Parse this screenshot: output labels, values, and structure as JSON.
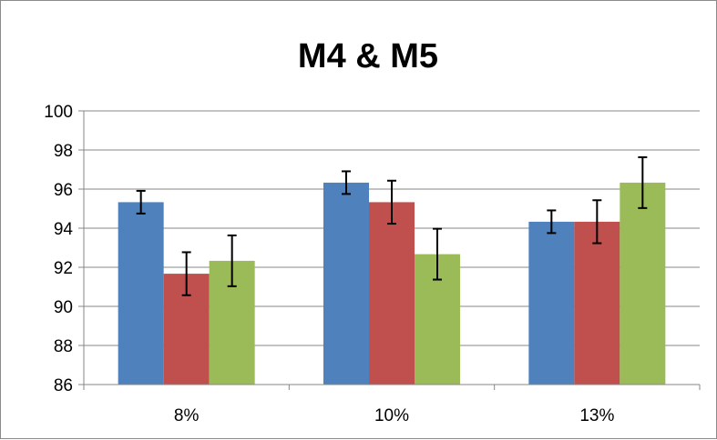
{
  "chart_data": {
    "type": "bar",
    "title": "M4 & M5",
    "xlabel": "",
    "ylabel": "",
    "categories": [
      "8%",
      "10%",
      "13%"
    ],
    "series": [
      {
        "color": "#4F81BD",
        "values": [
          95.33,
          96.33,
          94.33
        ],
        "errors": [
          0.58,
          0.58,
          0.58
        ]
      },
      {
        "color": "#C0504D",
        "values": [
          91.67,
          95.33,
          94.33
        ],
        "errors": [
          1.1,
          1.1,
          1.1
        ]
      },
      {
        "color": "#9BBB59",
        "values": [
          92.33,
          92.67,
          96.33
        ],
        "errors": [
          1.3,
          1.3,
          1.3
        ]
      }
    ],
    "ylim": [
      86,
      100
    ],
    "yticks": [
      86,
      88,
      90,
      92,
      94,
      96,
      98,
      100
    ],
    "ytick_labels": [
      "86",
      "88",
      "90",
      "92",
      "94",
      "96",
      "98",
      "100"
    ],
    "grid": true,
    "legend": "none"
  }
}
